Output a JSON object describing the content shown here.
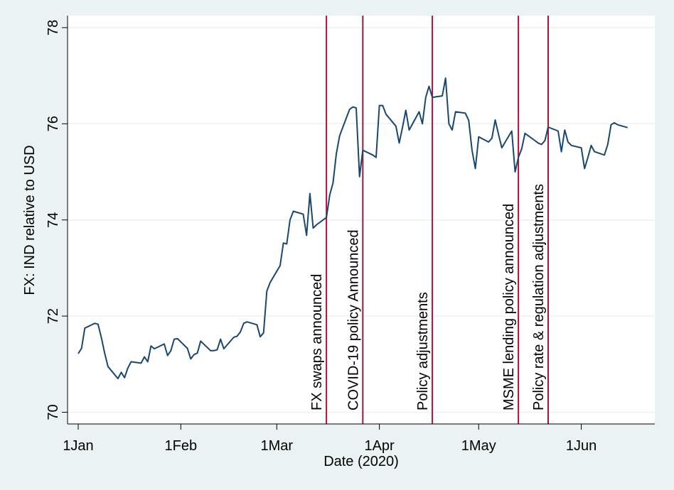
{
  "chart_data": {
    "type": "line",
    "title": "",
    "xlabel": "Date (2020)",
    "ylabel": "FX: IND relative to USD",
    "ylim": [
      70,
      78
    ],
    "yticks": [
      70,
      72,
      74,
      76,
      78
    ],
    "x_ticks": [
      {
        "date": "2020-01-01",
        "label": "1Jan"
      },
      {
        "date": "2020-02-01",
        "label": "1Feb"
      },
      {
        "date": "2020-03-01",
        "label": "1Mar"
      },
      {
        "date": "2020-04-01",
        "label": "1Apr"
      },
      {
        "date": "2020-05-01",
        "label": "1May"
      },
      {
        "date": "2020-06-01",
        "label": "1Jun"
      }
    ],
    "grid": true,
    "line_color": "#1a476f",
    "event_color": "#b0103a",
    "events": [
      {
        "date": "2020-03-16",
        "label": "FX swaps announced"
      },
      {
        "date": "2020-03-27",
        "label": "COVID-19 policy Announced"
      },
      {
        "date": "2020-04-17",
        "label": "Policy adjustments"
      },
      {
        "date": "2020-05-13",
        "label": "MSME lending policy announced"
      },
      {
        "date": "2020-05-22",
        "label": "Policy rate & regulation adjustments"
      }
    ],
    "series": [
      {
        "x": [
          "2020-01-01",
          "2020-01-02",
          "2020-01-03",
          "2020-01-06",
          "2020-01-07",
          "2020-01-08",
          "2020-01-09",
          "2020-01-10",
          "2020-01-13",
          "2020-01-14",
          "2020-01-15",
          "2020-01-16",
          "2020-01-17",
          "2020-01-20",
          "2020-01-21",
          "2020-01-22",
          "2020-01-23",
          "2020-01-24",
          "2020-01-27",
          "2020-01-28",
          "2020-01-29",
          "2020-01-30",
          "2020-01-31",
          "2020-02-03",
          "2020-02-04",
          "2020-02-05",
          "2020-02-06",
          "2020-02-07",
          "2020-02-10",
          "2020-02-11",
          "2020-02-12",
          "2020-02-13",
          "2020-02-14",
          "2020-02-17",
          "2020-02-18",
          "2020-02-19",
          "2020-02-20",
          "2020-02-21",
          "2020-02-24",
          "2020-02-25",
          "2020-02-26",
          "2020-02-27",
          "2020-02-28",
          "2020-03-02",
          "2020-03-03",
          "2020-03-04",
          "2020-03-05",
          "2020-03-06",
          "2020-03-09",
          "2020-03-10",
          "2020-03-11",
          "2020-03-12",
          "2020-03-13",
          "2020-03-16",
          "2020-03-17",
          "2020-03-18",
          "2020-03-19",
          "2020-03-20",
          "2020-03-23",
          "2020-03-24",
          "2020-03-25",
          "2020-03-26",
          "2020-03-27",
          "2020-03-30",
          "2020-03-31",
          "2020-04-01",
          "2020-04-02",
          "2020-04-03",
          "2020-04-06",
          "2020-04-07",
          "2020-04-08",
          "2020-04-09",
          "2020-04-10",
          "2020-04-13",
          "2020-04-14",
          "2020-04-15",
          "2020-04-16",
          "2020-04-17",
          "2020-04-20",
          "2020-04-21",
          "2020-04-22",
          "2020-04-23",
          "2020-04-24",
          "2020-04-27",
          "2020-04-28",
          "2020-04-29",
          "2020-04-30",
          "2020-05-01",
          "2020-05-04",
          "2020-05-05",
          "2020-05-06",
          "2020-05-07",
          "2020-05-08",
          "2020-05-11",
          "2020-05-12",
          "2020-05-13",
          "2020-05-14",
          "2020-05-15",
          "2020-05-18",
          "2020-05-19",
          "2020-05-20",
          "2020-05-21",
          "2020-05-22",
          "2020-05-25",
          "2020-05-26",
          "2020-05-27",
          "2020-05-28",
          "2020-05-29",
          "2020-06-01",
          "2020-06-02",
          "2020-06-03",
          "2020-06-04",
          "2020-06-05",
          "2020-06-08",
          "2020-06-09",
          "2020-06-10",
          "2020-06-11",
          "2020-06-12",
          "2020-06-15"
        ],
        "y": [
          71.22,
          71.33,
          71.75,
          71.85,
          71.83,
          71.55,
          71.23,
          70.95,
          70.7,
          70.83,
          70.72,
          70.92,
          71.05,
          71.02,
          71.15,
          71.05,
          71.38,
          71.32,
          71.42,
          71.18,
          71.28,
          71.52,
          71.53,
          71.33,
          71.11,
          71.2,
          71.23,
          71.48,
          71.28,
          71.28,
          71.3,
          71.52,
          71.32,
          71.56,
          71.58,
          71.67,
          71.85,
          71.88,
          71.82,
          71.57,
          71.65,
          72.52,
          72.7,
          73.05,
          73.52,
          73.5,
          74.0,
          74.18,
          74.12,
          73.68,
          74.55,
          73.83,
          73.9,
          74.05,
          74.52,
          74.77,
          75.38,
          75.75,
          76.3,
          76.35,
          76.33,
          74.9,
          75.45,
          75.35,
          75.3,
          76.38,
          76.38,
          76.2,
          75.95,
          75.6,
          75.93,
          76.28,
          75.87,
          76.25,
          76.0,
          76.55,
          76.78,
          76.55,
          76.58,
          76.95,
          76.0,
          75.87,
          76.25,
          76.22,
          76.07,
          75.45,
          75.07,
          75.73,
          75.62,
          75.7,
          76.08,
          75.78,
          75.5,
          75.85,
          75.0,
          75.3,
          75.48,
          75.8,
          75.65,
          75.6,
          75.57,
          75.65,
          75.93,
          75.85,
          75.42,
          75.87,
          75.62,
          75.55,
          75.5,
          75.07,
          75.3,
          75.55,
          75.42,
          75.35,
          75.57,
          75.98,
          76.02,
          75.98,
          75.92
        ]
      }
    ]
  }
}
